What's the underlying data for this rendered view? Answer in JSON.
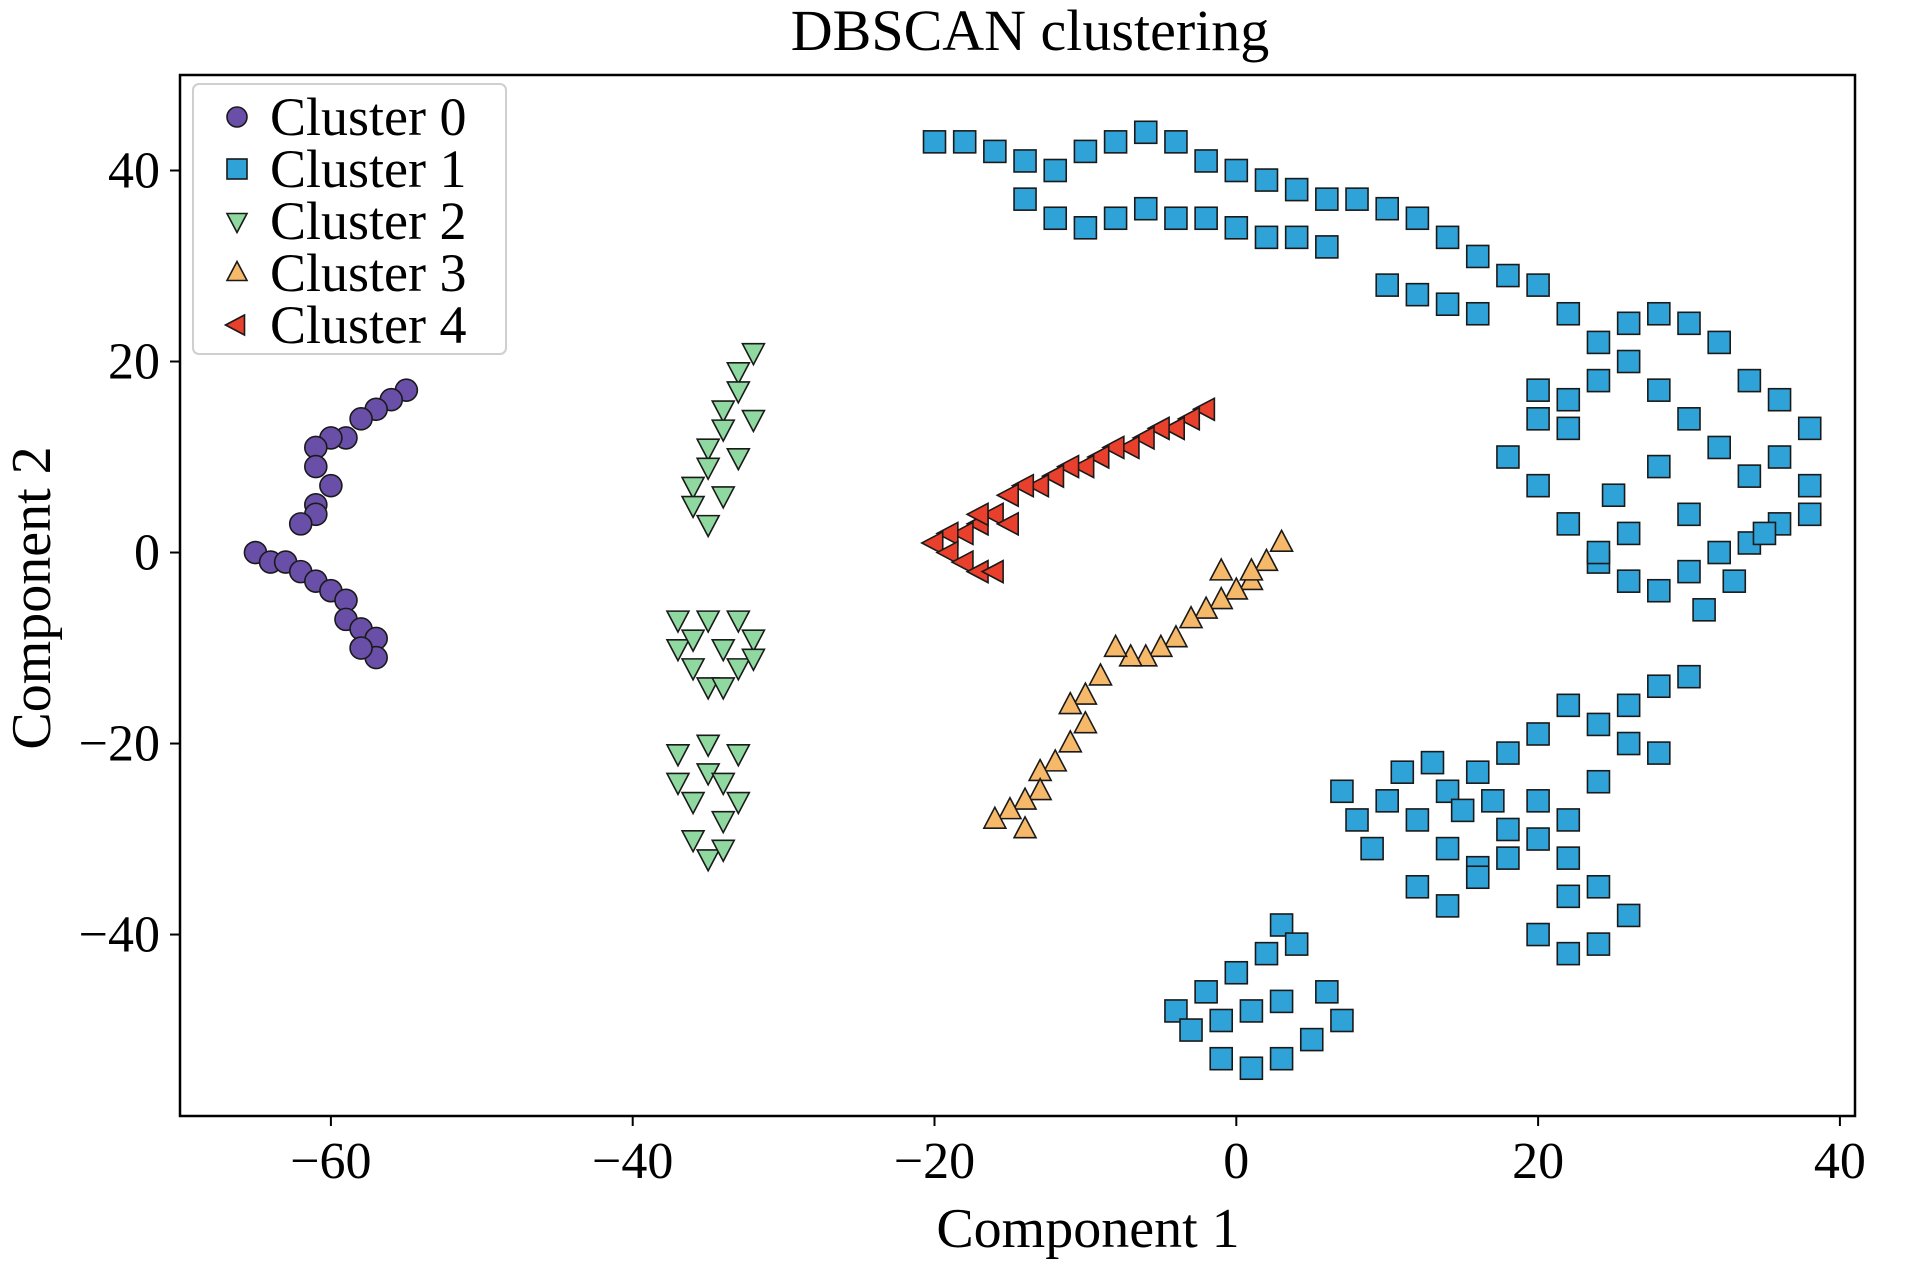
{
  "chart_data": {
    "type": "scatter",
    "title": "DBSCAN clustering",
    "xlabel": "Component 1",
    "ylabel": "Component 2",
    "xlim": [
      -70,
      41
    ],
    "ylim": [
      -59,
      50
    ],
    "xticks": [
      -60,
      -40,
      -20,
      0,
      20,
      40
    ],
    "xtick_labels": [
      "−60",
      "−40",
      "−20",
      "0",
      "20",
      "40"
    ],
    "yticks": [
      -40,
      -20,
      0,
      20,
      40
    ],
    "ytick_labels": [
      "−40",
      "−20",
      "0",
      "20",
      "40"
    ],
    "grid": false,
    "legend_position": "top-left",
    "series": [
      {
        "name": "Cluster 0",
        "marker": "circle",
        "color": "#6a4fa8",
        "points": [
          [
            -55,
            17
          ],
          [
            -56,
            16
          ],
          [
            -57,
            15
          ],
          [
            -58,
            14
          ],
          [
            -59,
            12
          ],
          [
            -60,
            12
          ],
          [
            -61,
            11
          ],
          [
            -61,
            9
          ],
          [
            -60,
            7
          ],
          [
            -61,
            5
          ],
          [
            -61,
            4
          ],
          [
            -62,
            3
          ],
          [
            -65,
            0
          ],
          [
            -64,
            -1
          ],
          [
            -63,
            -1
          ],
          [
            -62,
            -2
          ],
          [
            -61,
            -3
          ],
          [
            -60,
            -4
          ],
          [
            -59,
            -5
          ],
          [
            -59,
            -7
          ],
          [
            -58,
            -8
          ],
          [
            -57,
            -9
          ],
          [
            -57,
            -11
          ],
          [
            -58,
            -10
          ]
        ]
      },
      {
        "name": "Cluster 1",
        "marker": "square",
        "color": "#2fa3d8",
        "points": [
          [
            -20,
            43
          ],
          [
            -18,
            43
          ],
          [
            -16,
            42
          ],
          [
            -14,
            41
          ],
          [
            -12,
            40
          ],
          [
            -10,
            42
          ],
          [
            -8,
            43
          ],
          [
            -6,
            44
          ],
          [
            -4,
            43
          ],
          [
            -2,
            41
          ],
          [
            0,
            40
          ],
          [
            2,
            39
          ],
          [
            4,
            38
          ],
          [
            6,
            37
          ],
          [
            -14,
            37
          ],
          [
            -12,
            35
          ],
          [
            -10,
            34
          ],
          [
            -8,
            35
          ],
          [
            -6,
            36
          ],
          [
            -4,
            35
          ],
          [
            -2,
            35
          ],
          [
            0,
            34
          ],
          [
            2,
            33
          ],
          [
            4,
            33
          ],
          [
            6,
            32
          ],
          [
            8,
            37
          ],
          [
            10,
            36
          ],
          [
            12,
            35
          ],
          [
            14,
            33
          ],
          [
            16,
            31
          ],
          [
            10,
            28
          ],
          [
            12,
            27
          ],
          [
            14,
            26
          ],
          [
            16,
            25
          ],
          [
            18,
            29
          ],
          [
            20,
            28
          ],
          [
            22,
            25
          ],
          [
            24,
            22
          ],
          [
            26,
            24
          ],
          [
            28,
            25
          ],
          [
            30,
            24
          ],
          [
            32,
            22
          ],
          [
            34,
            18
          ],
          [
            36,
            16
          ],
          [
            38,
            13
          ],
          [
            36,
            10
          ],
          [
            38,
            7
          ],
          [
            38,
            4
          ],
          [
            36,
            3
          ],
          [
            34,
            1
          ],
          [
            32,
            0
          ],
          [
            30,
            -2
          ],
          [
            28,
            -4
          ],
          [
            26,
            -3
          ],
          [
            24,
            -1
          ],
          [
            22,
            3
          ],
          [
            20,
            7
          ],
          [
            18,
            10
          ],
          [
            20,
            14
          ],
          [
            22,
            16
          ],
          [
            24,
            18
          ],
          [
            26,
            20
          ],
          [
            28,
            17
          ],
          [
            30,
            14
          ],
          [
            32,
            11
          ],
          [
            34,
            8
          ],
          [
            30,
            4
          ],
          [
            26,
            2
          ],
          [
            24,
            0
          ],
          [
            20,
            17
          ],
          [
            22,
            13
          ],
          [
            25,
            6
          ],
          [
            28,
            9
          ],
          [
            31,
            -6
          ],
          [
            33,
            -3
          ],
          [
            35,
            2
          ],
          [
            12,
            -28
          ],
          [
            14,
            -25
          ],
          [
            16,
            -23
          ],
          [
            18,
            -21
          ],
          [
            20,
            -19
          ],
          [
            22,
            -16
          ],
          [
            24,
            -18
          ],
          [
            26,
            -16
          ],
          [
            28,
            -14
          ],
          [
            30,
            -13
          ],
          [
            26,
            -20
          ],
          [
            28,
            -21
          ],
          [
            24,
            -24
          ],
          [
            22,
            -28
          ],
          [
            20,
            -30
          ],
          [
            18,
            -32
          ],
          [
            16,
            -33
          ],
          [
            14,
            -31
          ],
          [
            12,
            -35
          ],
          [
            14,
            -37
          ],
          [
            16,
            -34
          ],
          [
            18,
            -29
          ],
          [
            20,
            -26
          ],
          [
            22,
            -32
          ],
          [
            24,
            -35
          ],
          [
            26,
            -38
          ],
          [
            24,
            -41
          ],
          [
            22,
            -42
          ],
          [
            20,
            -40
          ],
          [
            22,
            -36
          ],
          [
            10,
            -26
          ],
          [
            8,
            -28
          ],
          [
            7,
            -25
          ],
          [
            9,
            -31
          ],
          [
            11,
            -23
          ],
          [
            13,
            -22
          ],
          [
            15,
            -27
          ],
          [
            17,
            -26
          ],
          [
            -4,
            -48
          ],
          [
            -2,
            -46
          ],
          [
            0,
            -44
          ],
          [
            2,
            -42
          ],
          [
            3,
            -39
          ],
          [
            4,
            -41
          ],
          [
            6,
            -46
          ],
          [
            7,
            -49
          ],
          [
            5,
            -51
          ],
          [
            3,
            -53
          ],
          [
            1,
            -54
          ],
          [
            -1,
            -53
          ],
          [
            -3,
            -50
          ],
          [
            -1,
            -49
          ],
          [
            1,
            -48
          ],
          [
            3,
            -47
          ]
        ]
      },
      {
        "name": "Cluster 2",
        "marker": "triangle-down",
        "color": "#8fd9a0",
        "points": [
          [
            -32,
            21
          ],
          [
            -33,
            19
          ],
          [
            -33,
            17
          ],
          [
            -34,
            15
          ],
          [
            -34,
            13
          ],
          [
            -35,
            11
          ],
          [
            -35,
            9
          ],
          [
            -36,
            7
          ],
          [
            -36,
            5
          ],
          [
            -35,
            3
          ],
          [
            -34,
            6
          ],
          [
            -33,
            10
          ],
          [
            -32,
            14
          ],
          [
            -37,
            -7
          ],
          [
            -35,
            -7
          ],
          [
            -33,
            -7
          ],
          [
            -32,
            -9
          ],
          [
            -37,
            -10
          ],
          [
            -36,
            -12
          ],
          [
            -35,
            -14
          ],
          [
            -34,
            -14
          ],
          [
            -33,
            -12
          ],
          [
            -32,
            -11
          ],
          [
            -36,
            -9
          ],
          [
            -34,
            -10
          ],
          [
            -37,
            -21
          ],
          [
            -35,
            -20
          ],
          [
            -33,
            -21
          ],
          [
            -37,
            -24
          ],
          [
            -36,
            -26
          ],
          [
            -34,
            -28
          ],
          [
            -33,
            -26
          ],
          [
            -36,
            -30
          ],
          [
            -35,
            -32
          ],
          [
            -34,
            -31
          ],
          [
            -35,
            -23
          ],
          [
            -34,
            -24
          ]
        ]
      },
      {
        "name": "Cluster 3",
        "marker": "triangle-up",
        "color": "#f6b96a",
        "points": [
          [
            3,
            1
          ],
          [
            2,
            -1
          ],
          [
            1,
            -3
          ],
          [
            0,
            -4
          ],
          [
            -1,
            -5
          ],
          [
            -2,
            -6
          ],
          [
            -3,
            -7
          ],
          [
            -4,
            -9
          ],
          [
            -5,
            -10
          ],
          [
            -6,
            -11
          ],
          [
            -7,
            -11
          ],
          [
            -8,
            -10
          ],
          [
            -9,
            -13
          ],
          [
            -10,
            -15
          ],
          [
            -11,
            -16
          ],
          [
            -10,
            -18
          ],
          [
            -11,
            -20
          ],
          [
            -12,
            -22
          ],
          [
            -13,
            -23
          ],
          [
            -13,
            -25
          ],
          [
            -14,
            -26
          ],
          [
            -15,
            -27
          ],
          [
            -16,
            -28
          ],
          [
            -14,
            -29
          ],
          [
            1,
            -2
          ],
          [
            -1,
            -2
          ]
        ]
      },
      {
        "name": "Cluster 4",
        "marker": "triangle-left",
        "color": "#e8402c",
        "points": [
          [
            -2,
            15
          ],
          [
            -3,
            14
          ],
          [
            -4,
            13
          ],
          [
            -5,
            13
          ],
          [
            -6,
            12
          ],
          [
            -7,
            11
          ],
          [
            -8,
            11
          ],
          [
            -9,
            10
          ],
          [
            -10,
            9
          ],
          [
            -11,
            9
          ],
          [
            -12,
            8
          ],
          [
            -13,
            7
          ],
          [
            -14,
            7
          ],
          [
            -15,
            6
          ],
          [
            -16,
            4
          ],
          [
            -17,
            3
          ],
          [
            -18,
            2
          ],
          [
            -19,
            2
          ],
          [
            -20,
            1
          ],
          [
            -19,
            0
          ],
          [
            -18,
            -1
          ],
          [
            -17,
            -2
          ],
          [
            -16,
            -2
          ],
          [
            -17,
            4
          ],
          [
            -15,
            3
          ]
        ]
      }
    ]
  }
}
